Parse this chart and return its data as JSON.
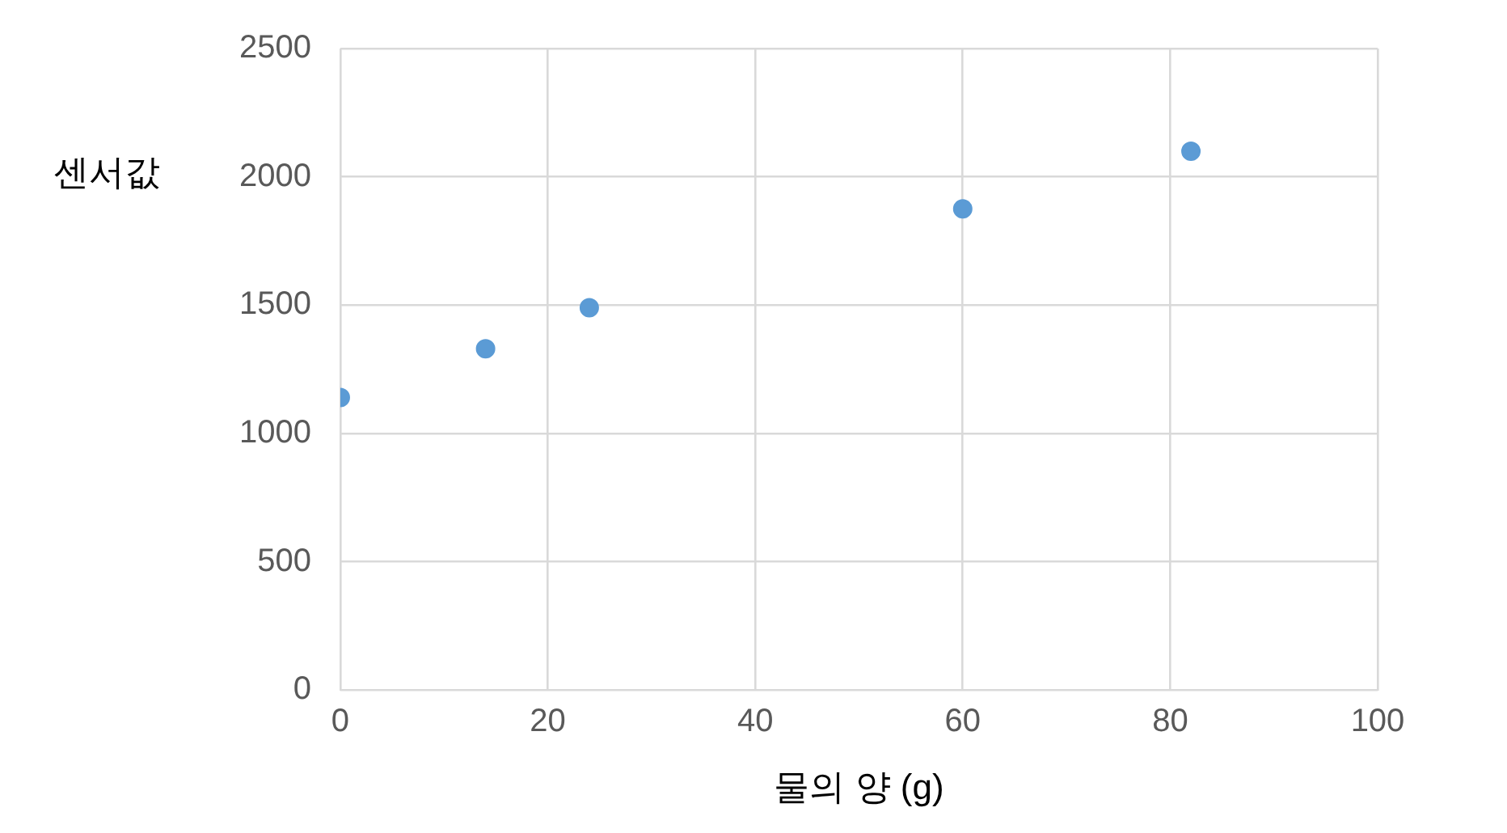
{
  "chart_data": {
    "type": "scatter",
    "xlabel": "물의 양 (g)",
    "ylabel": "센서값",
    "x": [
      0,
      14,
      24,
      60,
      82
    ],
    "series": [
      {
        "color": "#5b9bd5",
        "values": [
          1140,
          1330,
          1490,
          1875,
          2100
        ]
      }
    ],
    "xlim": [
      0,
      100
    ],
    "xticks": [
      0,
      20,
      40,
      60,
      80,
      100
    ],
    "ylim": [
      0,
      2500
    ],
    "yticks": [
      0,
      500,
      1000,
      1500,
      2000,
      2500
    ],
    "grid": true,
    "legend": false,
    "marker": "circle"
  }
}
